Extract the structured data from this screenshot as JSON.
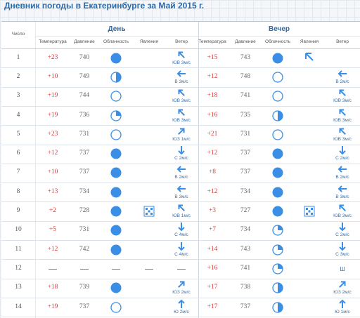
{
  "title": "Дневник погоды в Екатеринбурге за Май 2015 г.",
  "table": {
    "headers": {
      "date": "Число",
      "day": "День",
      "evening": "Вечер",
      "day_columns": [
        "Температура",
        "Давление",
        "Облачность",
        "Явления",
        "Ветер"
      ],
      "evening_columns": [
        "Температура",
        "Давление",
        "Облачность",
        "Явления",
        "Ветер"
      ]
    },
    "rows": [
      {
        "date": 1,
        "day": {
          "temperature": "+23",
          "pressure": 740,
          "wind": "ЮВ 3м/с"
        },
        "evening": {
          "temperature": "+15",
          "pressure": 743
        }
      },
      {
        "date": 2,
        "day": {
          "temperature": "+10",
          "pressure": 749,
          "wind": "В 3м/с"
        },
        "evening": {
          "temperature": "+12",
          "pressure": 748,
          "wind": "В 2м/с"
        }
      },
      {
        "date": 3,
        "day": {
          "temperature": "+19",
          "pressure": 744,
          "wind": "ЮВ 3м/с"
        },
        "evening": {
          "temperature": "+18",
          "pressure": 741,
          "wind": "ЮВ 3м/с"
        }
      },
      {
        "date": 4,
        "day": {
          "temperature": "+19",
          "pressure": 736,
          "wind": "ЮВ 3м/с"
        },
        "evening": {
          "temperature": "+16",
          "pressure": 735,
          "wind": "ЮВ 3м/с"
        }
      },
      {
        "date": 5,
        "day": {
          "temperature": "+23",
          "pressure": 731,
          "wind": "ЮЗ 1м/с"
        },
        "evening": {
          "temperature": "+21",
          "pressure": 731,
          "wind": "ЮВ 3м/с"
        }
      },
      {
        "date": 6,
        "day": {
          "temperature": "+12",
          "pressure": 737,
          "wind": "С 2м/с"
        },
        "evening": {
          "temperature": "+12",
          "pressure": 737,
          "wind": "С 2м/с"
        }
      },
      {
        "date": 7,
        "day": {
          "temperature": "+10",
          "pressure": 737,
          "wind": "В 2м/с"
        },
        "evening": {
          "temperature": "+8",
          "pressure": 737,
          "wind": "В 2м/с"
        }
      },
      {
        "date": 8,
        "day": {
          "temperature": "+13",
          "pressure": 734,
          "wind": "В 3м/с"
        },
        "evening": {
          "temperature": "+12",
          "pressure": 734,
          "wind": "В 3м/с"
        }
      },
      {
        "date": 9,
        "day": {
          "temperature": "+2",
          "pressure": 728,
          "wind": "ЮВ 1м/с"
        },
        "evening": {
          "temperature": "+3",
          "pressure": 727,
          "wind": "ЮВ 3м/с"
        }
      },
      {
        "date": 10,
        "day": {
          "temperature": "+5",
          "pressure": 731,
          "wind": "С 4м/с"
        },
        "evening": {
          "temperature": "+7",
          "pressure": 734,
          "wind": "С 2м/с"
        }
      },
      {
        "date": 11,
        "day": {
          "temperature": "+12",
          "pressure": 742,
          "wind": "С 4м/с"
        },
        "evening": {
          "temperature": "+14",
          "pressure": 743,
          "wind": "С 3м/с"
        }
      },
      {
        "date": 12,
        "day": {},
        "evening": {
          "temperature": "+16",
          "pressure": 741,
          "wind": "Ш"
        }
      },
      {
        "date": 13,
        "day": {
          "temperature": "+18",
          "pressure": 739,
          "wind": "ЮЗ 2м/с"
        },
        "evening": {
          "temperature": "+17",
          "pressure": 738,
          "wind": "ЮЗ 2м/с"
        }
      },
      {
        "date": 14,
        "day": {
          "temperature": "+19",
          "pressure": 737,
          "wind": "Ю 2м/с"
        },
        "evening": {
          "temperature": "+17",
          "pressure": 737,
          "wind": "Ю 1м/с"
        }
      }
    ]
  }
}
